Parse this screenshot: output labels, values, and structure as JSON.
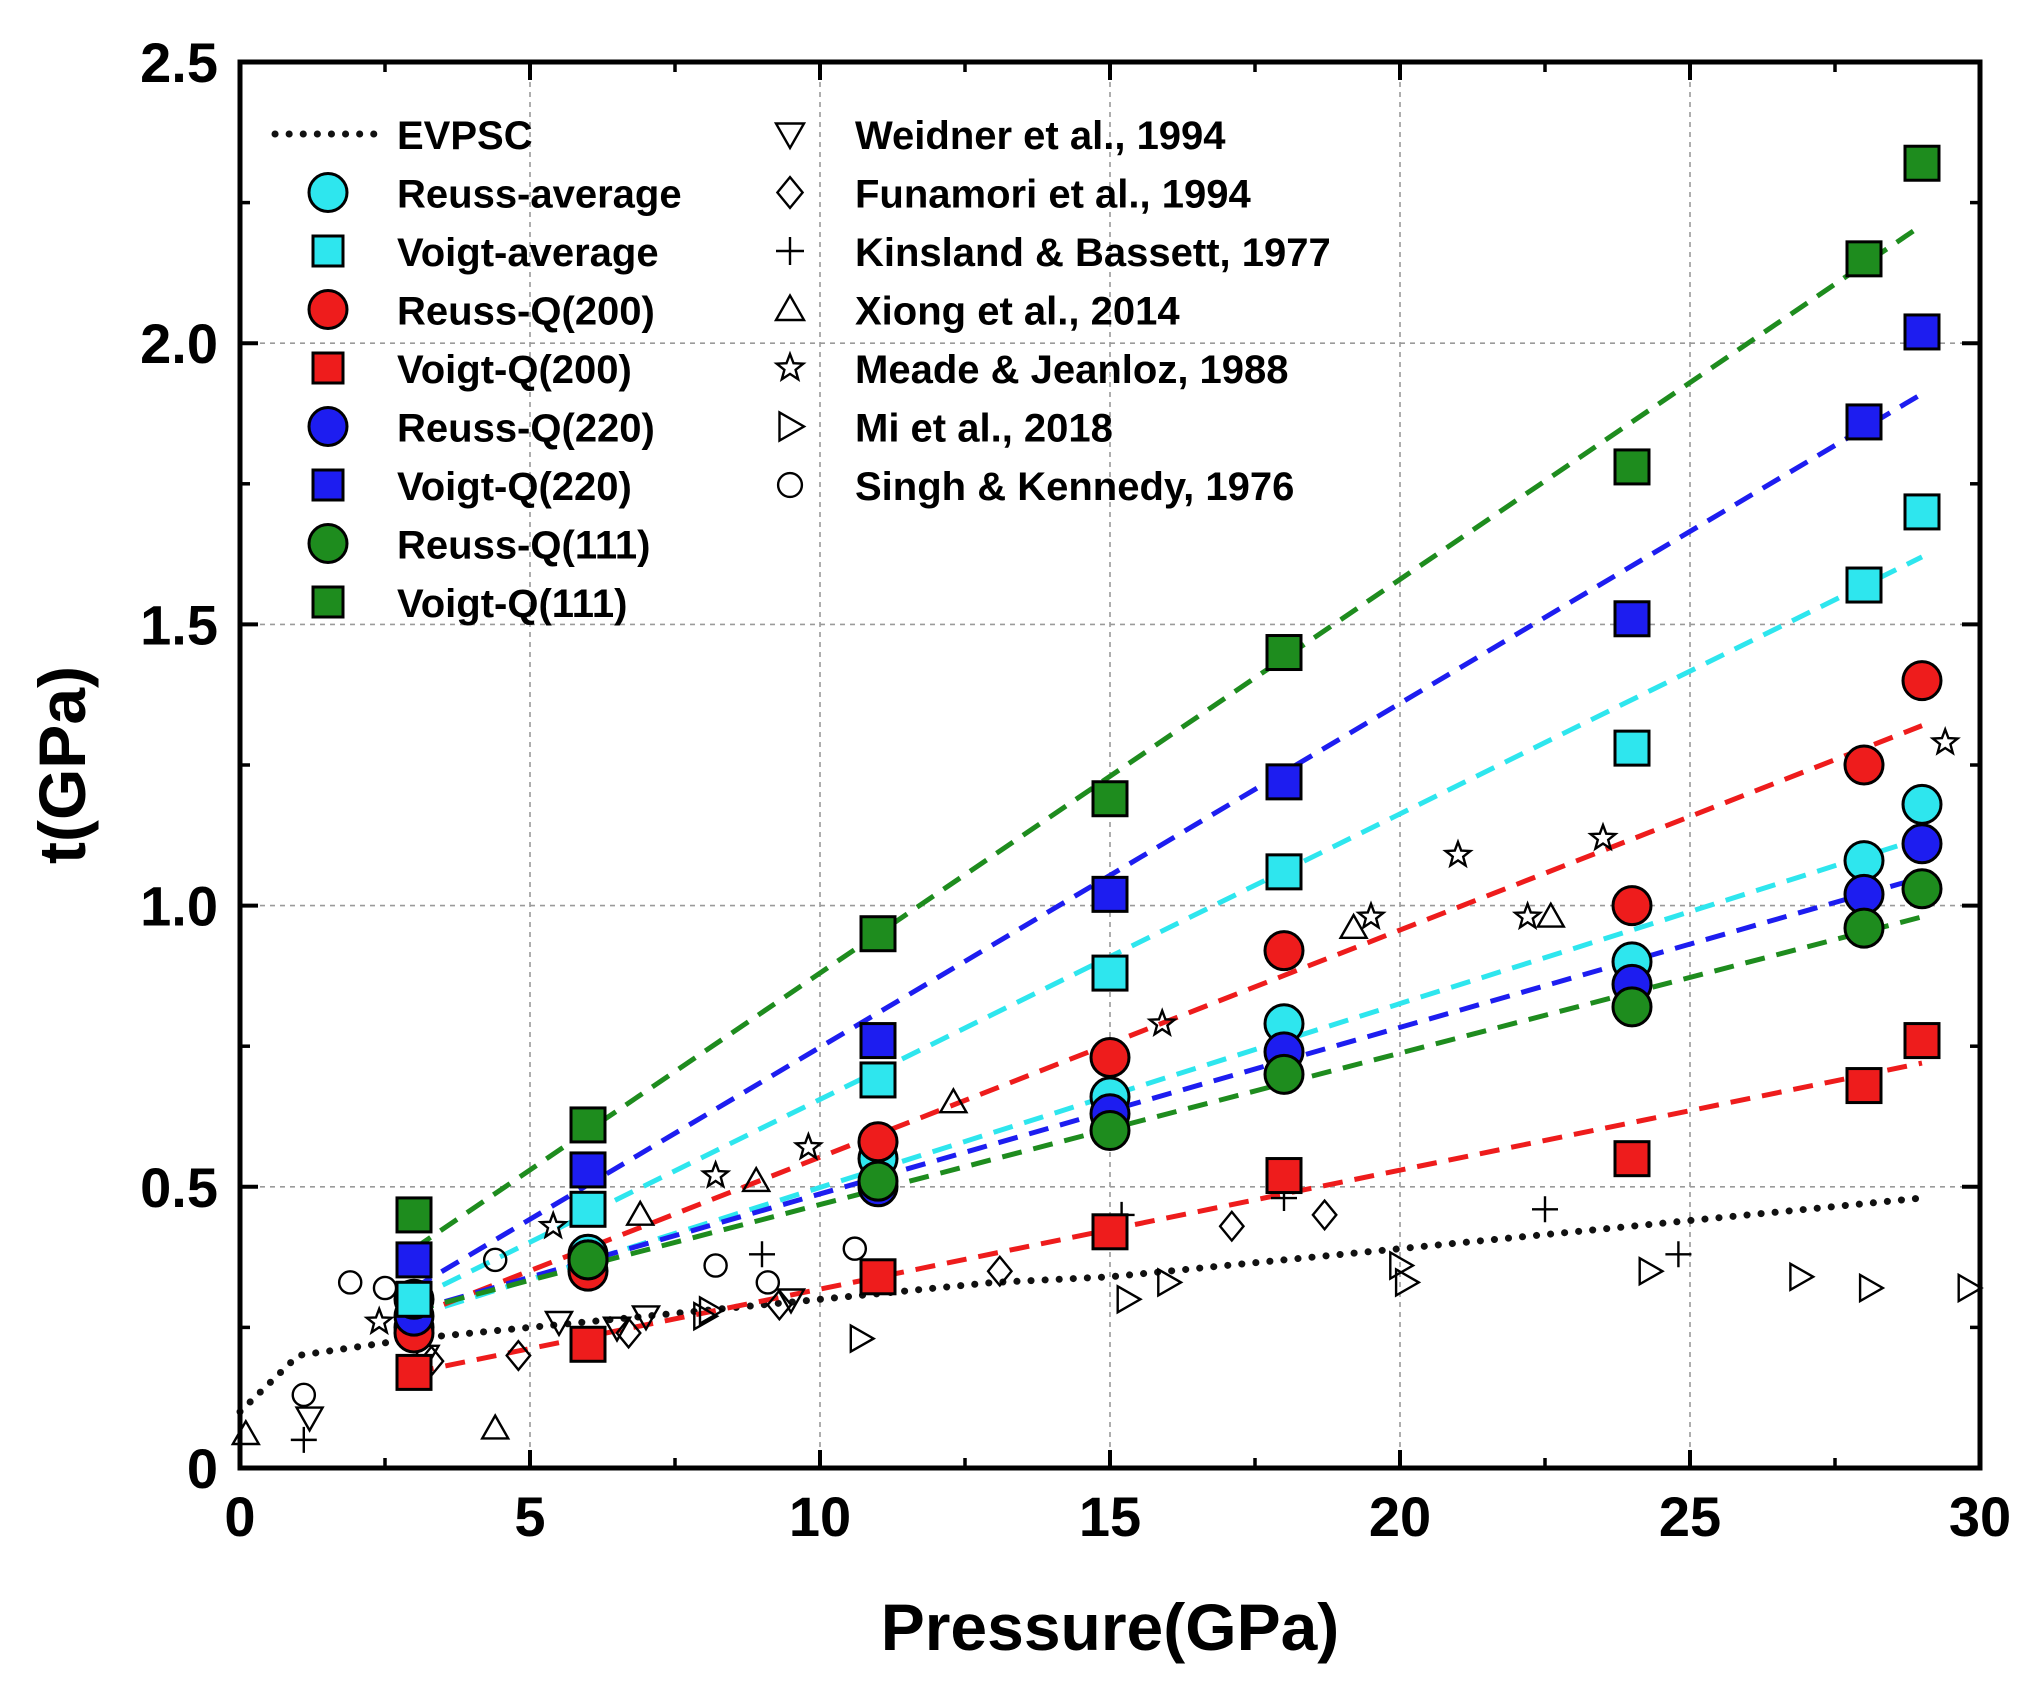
{
  "chart_data": {
    "type": "scatter",
    "title": "",
    "xlabel": "Pressure(GPa)",
    "ylabel": "t(GPa)",
    "xlim": [
      0,
      30
    ],
    "ylim": [
      0,
      2.5
    ],
    "xticks": [
      0,
      5,
      10,
      15,
      20,
      25,
      30
    ],
    "xtick_labels": [
      "0",
      "5",
      "10",
      "15",
      "20",
      "25",
      "30"
    ],
    "yticks": [
      0,
      0.5,
      1.0,
      1.5,
      2.0,
      2.5
    ],
    "ytick_labels": [
      "0",
      "0.5",
      "1.0",
      "1.5",
      "2.0",
      "2.5"
    ],
    "grid": true,
    "legend_position": "top-left",
    "model_series": [
      {
        "name": "EVPSC",
        "kind": "dotted-line",
        "color": "#111111",
        "x": [
          0,
          1,
          2,
          3,
          4,
          5,
          6,
          7,
          8,
          9,
          10,
          11,
          12,
          13,
          14,
          15,
          16,
          17,
          18,
          19,
          20,
          21,
          22,
          23,
          24,
          25,
          26,
          27,
          28,
          29
        ],
        "y": [
          0.1,
          0.2,
          0.215,
          0.23,
          0.24,
          0.25,
          0.26,
          0.27,
          0.28,
          0.29,
          0.3,
          0.31,
          0.32,
          0.33,
          0.335,
          0.34,
          0.35,
          0.36,
          0.37,
          0.38,
          0.39,
          0.4,
          0.41,
          0.42,
          0.43,
          0.44,
          0.45,
          0.46,
          0.47,
          0.48
        ]
      },
      {
        "name": "Reuss-average",
        "marker": "circle",
        "color": "#2ee6ee",
        "x": [
          3,
          6,
          11,
          15,
          18,
          24,
          28,
          29
        ],
        "y": [
          0.25,
          0.38,
          0.55,
          0.66,
          0.79,
          0.9,
          1.08,
          1.18
        ],
        "fit": [
          [
            3,
            0.27
          ],
          [
            29,
            1.12
          ]
        ]
      },
      {
        "name": "Voigt-average",
        "marker": "square",
        "color": "#2ee6ee",
        "x": [
          3,
          6,
          11,
          15,
          18,
          24,
          28,
          29
        ],
        "y": [
          0.3,
          0.46,
          0.69,
          0.88,
          1.06,
          1.28,
          1.57,
          1.7
        ],
        "fit": [
          [
            3,
            0.3
          ],
          [
            29,
            1.62
          ]
        ]
      },
      {
        "name": "Reuss-Q(200)",
        "marker": "circle",
        "color": "#ee1c1c",
        "x": [
          3,
          6,
          11,
          15,
          18,
          24,
          28,
          29
        ],
        "y": [
          0.24,
          0.35,
          0.58,
          0.73,
          0.92,
          1.0,
          1.25,
          1.4
        ],
        "fit": [
          [
            3,
            0.27
          ],
          [
            29,
            1.32
          ]
        ]
      },
      {
        "name": "Voigt-Q(200)",
        "marker": "square",
        "color": "#ee1c1c",
        "x": [
          3,
          6,
          11,
          15,
          18,
          24,
          28,
          29
        ],
        "y": [
          0.17,
          0.22,
          0.34,
          0.42,
          0.52,
          0.55,
          0.68,
          0.76
        ],
        "fit": [
          [
            3,
            0.17
          ],
          [
            29,
            0.72
          ]
        ]
      },
      {
        "name": "Reuss-Q(220)",
        "marker": "circle",
        "color": "#1d1df0",
        "x": [
          3,
          6,
          11,
          15,
          18,
          24,
          28,
          29
        ],
        "y": [
          0.27,
          0.37,
          0.5,
          0.63,
          0.74,
          0.86,
          1.02,
          1.11
        ],
        "fit": [
          [
            3,
            0.28
          ],
          [
            29,
            1.05
          ]
        ]
      },
      {
        "name": "Voigt-Q(220)",
        "marker": "square",
        "color": "#1d1df0",
        "x": [
          3,
          6,
          11,
          15,
          18,
          24,
          28,
          29
        ],
        "y": [
          0.37,
          0.53,
          0.76,
          1.02,
          1.22,
          1.51,
          1.86,
          2.02
        ],
        "fit": [
          [
            3,
            0.32
          ],
          [
            29,
            1.91
          ]
        ]
      },
      {
        "name": "Reuss-Q(111)",
        "marker": "circle",
        "color": "#1e8c1e",
        "x": [
          3,
          6,
          11,
          15,
          18,
          24,
          28,
          29
        ],
        "y": [
          0.3,
          0.37,
          0.51,
          0.6,
          0.7,
          0.82,
          0.96,
          1.03
        ],
        "fit": [
          [
            3,
            0.28
          ],
          [
            29,
            0.98
          ]
        ]
      },
      {
        "name": "Voigt-Q(111)",
        "marker": "square",
        "color": "#1e8c1e",
        "x": [
          3,
          6,
          11,
          15,
          18,
          24,
          28,
          29
        ],
        "y": [
          0.45,
          0.61,
          0.95,
          1.19,
          1.45,
          1.78,
          2.15,
          2.32
        ],
        "fit": [
          [
            3,
            0.39
          ],
          [
            29,
            2.21
          ]
        ]
      }
    ],
    "literature_series": [
      {
        "name": "Weidner et al., 1994",
        "marker": "triangle-down",
        "x": [
          1.2,
          3.2,
          5.5,
          6.5,
          7.0,
          9.5
        ],
        "y": [
          0.09,
          0.2,
          0.26,
          0.25,
          0.27,
          0.3
        ]
      },
      {
        "name": "Funamori et al., 1994",
        "marker": "diamond",
        "x": [
          3.3,
          4.8,
          6.7,
          9.3,
          13.1,
          17.1,
          18.7
        ],
        "y": [
          0.19,
          0.2,
          0.24,
          0.29,
          0.35,
          0.43,
          0.45
        ]
      },
      {
        "name": "Kinsland & Bassett, 1977",
        "marker": "plus",
        "x": [
          1.1,
          9.0,
          15.2,
          18.0,
          22.5,
          24.8
        ],
        "y": [
          0.05,
          0.38,
          0.45,
          0.48,
          0.46,
          0.38
        ]
      },
      {
        "name": "Xiong et al., 2014",
        "marker": "triangle-up",
        "x": [
          0.1,
          4.4,
          6.9,
          8.9,
          12.3,
          19.2,
          22.6
        ],
        "y": [
          0.06,
          0.07,
          0.45,
          0.51,
          0.65,
          0.96,
          0.98
        ]
      },
      {
        "name": "Meade & Jeanloz, 1988",
        "marker": "star",
        "x": [
          2.4,
          5.4,
          8.2,
          9.8,
          15.9,
          19.5,
          21.0,
          22.2,
          23.5,
          29.4
        ],
        "y": [
          0.26,
          0.43,
          0.52,
          0.57,
          0.79,
          0.98,
          1.09,
          0.98,
          1.12,
          1.29
        ]
      },
      {
        "name": "Mi et al., 2018",
        "marker": "triangle-right",
        "x": [
          8.0,
          8.1,
          10.7,
          15.3,
          16.0,
          20.0,
          20.1,
          24.3,
          26.9,
          28.1,
          29.8
        ],
        "y": [
          0.27,
          0.28,
          0.23,
          0.3,
          0.33,
          0.36,
          0.33,
          0.35,
          0.34,
          0.32,
          0.32
        ]
      },
      {
        "name": "Singh & Kennedy, 1976",
        "marker": "open-circle",
        "x": [
          1.1,
          1.9,
          2.5,
          4.4,
          8.2,
          9.1,
          10.6
        ],
        "y": [
          0.13,
          0.33,
          0.32,
          0.37,
          0.36,
          0.33,
          0.39
        ]
      }
    ]
  }
}
